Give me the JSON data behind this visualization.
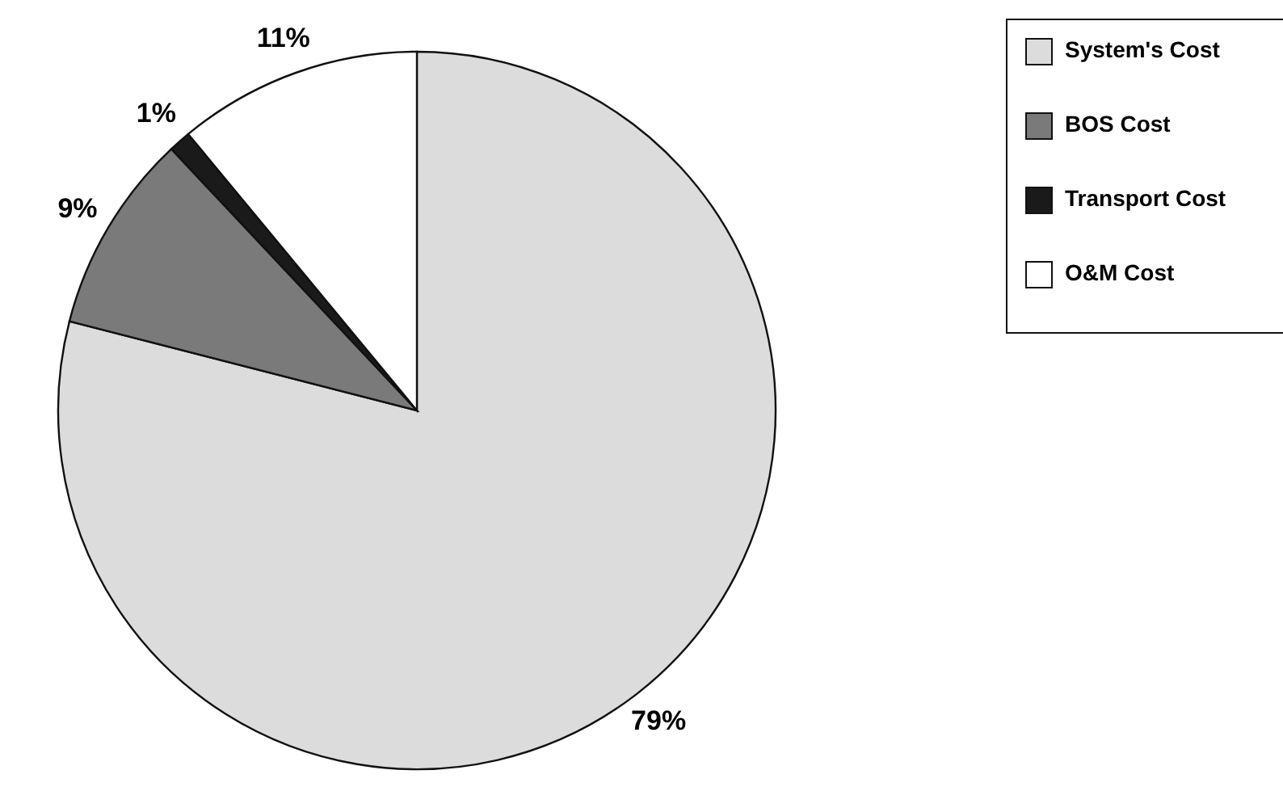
{
  "chart_data": {
    "type": "pie",
    "categories": [
      "System's Cost",
      "BOS Cost",
      "Transport Cost",
      "O&M Cost"
    ],
    "values": [
      79,
      9,
      1,
      11
    ],
    "colors": [
      "#dcdcdc",
      "#7a7a7a",
      "#1a1a1a",
      "#ffffff"
    ],
    "value_labels": [
      "79%",
      "9%",
      "1%",
      "11%"
    ],
    "legend": "top right"
  }
}
